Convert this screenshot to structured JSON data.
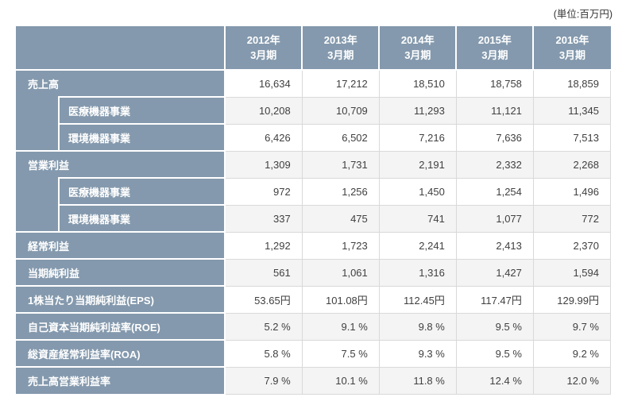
{
  "page": {
    "unit_label": "(単位:百万円)"
  },
  "colors": {
    "header_bg": "#8499ad",
    "row_alt_bg": "#f4f4f4",
    "grid_border": "#d9d9d9",
    "header_text": "#ffffff",
    "value_text": "#404040"
  },
  "table": {
    "columns": [
      {
        "year": "2012年",
        "period": "3月期"
      },
      {
        "year": "2013年",
        "period": "3月期"
      },
      {
        "year": "2014年",
        "period": "3月期"
      },
      {
        "year": "2015年",
        "period": "3月期"
      },
      {
        "year": "2016年",
        "period": "3月期"
      }
    ],
    "rows": [
      {
        "label": "売上高",
        "indent": false,
        "values": [
          "16,634",
          "17,212",
          "18,510",
          "18,758",
          "18,859"
        ]
      },
      {
        "label": "医療機器事業",
        "indent": true,
        "values": [
          "10,208",
          "10,709",
          "11,293",
          "11,121",
          "11,345"
        ]
      },
      {
        "label": "環境機器事業",
        "indent": true,
        "values": [
          "6,426",
          "6,502",
          "7,216",
          "7,636",
          "7,513"
        ]
      },
      {
        "label": "営業利益",
        "indent": false,
        "values": [
          "1,309",
          "1,731",
          "2,191",
          "2,332",
          "2,268"
        ]
      },
      {
        "label": "医療機器事業",
        "indent": true,
        "values": [
          "972",
          "1,256",
          "1,450",
          "1,254",
          "1,496"
        ]
      },
      {
        "label": "環境機器事業",
        "indent": true,
        "values": [
          "337",
          "475",
          "741",
          "1,077",
          "772"
        ]
      },
      {
        "label": "経常利益",
        "indent": false,
        "values": [
          "1,292",
          "1,723",
          "2,241",
          "2,413",
          "2,370"
        ]
      },
      {
        "label": "当期純利益",
        "indent": false,
        "values": [
          "561",
          "1,061",
          "1,316",
          "1,427",
          "1,594"
        ]
      },
      {
        "label": "1株当たり当期純利益(EPS)",
        "indent": false,
        "values": [
          "53.65円",
          "101.08円",
          "112.45円",
          "117.47円",
          "129.99円"
        ]
      },
      {
        "label": "自己資本当期純利益率(ROE)",
        "indent": false,
        "values": [
          "5.2 %",
          "9.1 %",
          "9.8 %",
          "9.5 %",
          "9.7 %"
        ]
      },
      {
        "label": "総資産経常利益率(ROA)",
        "indent": false,
        "values": [
          "5.8 %",
          "7.5 %",
          "9.3 %",
          "9.5 %",
          "9.2 %"
        ]
      },
      {
        "label": "売上高営業利益率",
        "indent": false,
        "values": [
          "7.9 %",
          "10.1 %",
          "11.8 %",
          "12.4 %",
          "12.0 %"
        ]
      }
    ]
  },
  "chart_data": {
    "type": "table",
    "unit_note": "(単位:百万円)",
    "columns": [
      "2012年3月期",
      "2013年3月期",
      "2014年3月期",
      "2015年3月期",
      "2016年3月期"
    ],
    "rows": [
      {
        "metric": "売上高",
        "unit": "百万円",
        "values": [
          16634,
          17212,
          18510,
          18758,
          18859
        ]
      },
      {
        "metric": "売上高 医療機器事業",
        "unit": "百万円",
        "values": [
          10208,
          10709,
          11293,
          11121,
          11345
        ]
      },
      {
        "metric": "売上高 環境機器事業",
        "unit": "百万円",
        "values": [
          6426,
          6502,
          7216,
          7636,
          7513
        ]
      },
      {
        "metric": "営業利益",
        "unit": "百万円",
        "values": [
          1309,
          1731,
          2191,
          2332,
          2268
        ]
      },
      {
        "metric": "営業利益 医療機器事業",
        "unit": "百万円",
        "values": [
          972,
          1256,
          1450,
          1254,
          1496
        ]
      },
      {
        "metric": "営業利益 環境機器事業",
        "unit": "百万円",
        "values": [
          337,
          475,
          741,
          1077,
          772
        ]
      },
      {
        "metric": "経常利益",
        "unit": "百万円",
        "values": [
          1292,
          1723,
          2241,
          2413,
          2370
        ]
      },
      {
        "metric": "当期純利益",
        "unit": "百万円",
        "values": [
          561,
          1061,
          1316,
          1427,
          1594
        ]
      },
      {
        "metric": "1株当たり当期純利益(EPS)",
        "unit": "円",
        "values": [
          53.65,
          101.08,
          112.45,
          117.47,
          129.99
        ]
      },
      {
        "metric": "自己資本当期純利益率(ROE)",
        "unit": "%",
        "values": [
          5.2,
          9.1,
          9.8,
          9.5,
          9.7
        ]
      },
      {
        "metric": "総資産経常利益率(ROA)",
        "unit": "%",
        "values": [
          5.8,
          7.5,
          9.3,
          9.5,
          9.2
        ]
      },
      {
        "metric": "売上高営業利益率",
        "unit": "%",
        "values": [
          7.9,
          10.1,
          11.8,
          12.4,
          12.0
        ]
      }
    ]
  }
}
